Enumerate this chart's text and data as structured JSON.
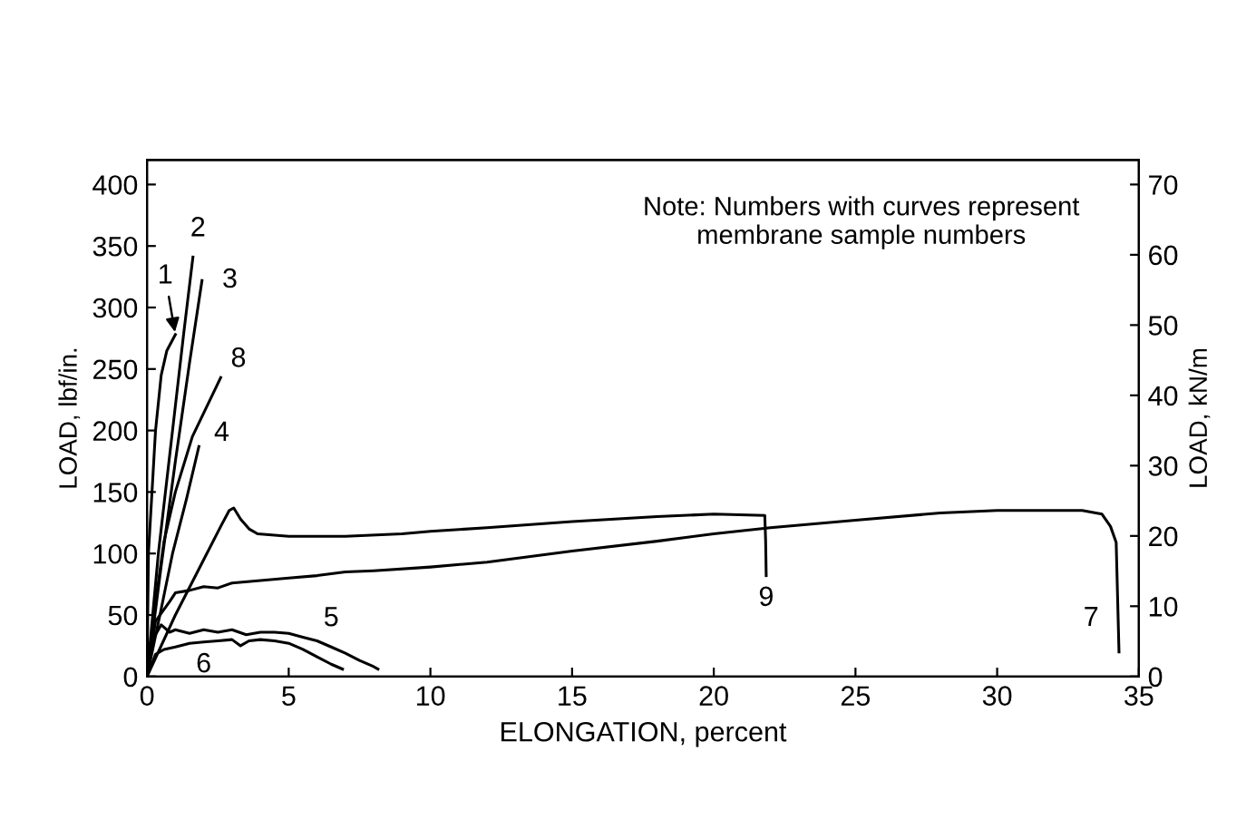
{
  "chart_data": {
    "type": "line",
    "xlabel": "ELONGATION, percent",
    "ylabel": "LOAD, lbf/in.",
    "y2label": "LOAD, kN/m",
    "xlim": [
      0,
      35
    ],
    "xticks": [
      0,
      5,
      10,
      15,
      20,
      25,
      30,
      35
    ],
    "ylim": [
      0,
      420
    ],
    "yticks": [
      0,
      50,
      100,
      150,
      200,
      250,
      300,
      350,
      400
    ],
    "y2lim": [
      0,
      73.5
    ],
    "y2ticks": [
      0,
      10,
      20,
      30,
      40,
      50,
      60,
      70
    ],
    "grid": false,
    "legend": false,
    "marker": "none",
    "line_style": "solid",
    "series": [
      {
        "name": "1",
        "color": "#000000",
        "x": [
          0,
          0.05,
          0.3,
          0.5,
          0.7,
          1.0
        ],
        "values": [
          0,
          100,
          200,
          245,
          265,
          278
        ]
      },
      {
        "name": "2",
        "color": "#000000",
        "x": [
          0,
          0.4,
          0.9,
          1.3,
          1.62
        ],
        "values": [
          0,
          100,
          200,
          280,
          341
        ]
      },
      {
        "name": "3",
        "color": "#000000",
        "x": [
          0,
          0.5,
          1.0,
          1.5,
          1.94
        ],
        "values": [
          0,
          90,
          175,
          255,
          322
        ]
      },
      {
        "name": "4",
        "color": "#000000",
        "x": [
          0,
          0.5,
          0.9,
          1.4,
          1.83
        ],
        "values": [
          0,
          55,
          100,
          145,
          187
        ]
      },
      {
        "name": "5",
        "color": "#000000",
        "x": [
          0,
          0.2,
          0.5,
          0.8,
          1,
          1.5,
          2,
          2.5,
          3,
          3.5,
          4,
          4.5,
          5,
          5.5,
          6,
          6.5,
          7,
          7.5,
          8,
          8.15
        ],
        "values": [
          0,
          30,
          42,
          36,
          38,
          35,
          38,
          36,
          38,
          34,
          36,
          36,
          35,
          32,
          29,
          24,
          19,
          13,
          8,
          6
        ]
      },
      {
        "name": "6",
        "color": "#000000",
        "x": [
          0,
          0.3,
          0.6,
          1,
          1.5,
          2,
          2.5,
          3,
          3.3,
          3.6,
          4,
          4.5,
          5,
          5.5,
          6,
          6.5,
          6.9
        ],
        "values": [
          0,
          18,
          22,
          24,
          27,
          28,
          29,
          30,
          25,
          29,
          30,
          29,
          27,
          22,
          16,
          10,
          6
        ]
      },
      {
        "name": "7",
        "color": "#000000",
        "x": [
          0,
          0.3,
          0.8,
          1,
          1.5,
          2,
          2.5,
          3,
          4,
          5,
          6,
          7,
          8,
          10,
          12,
          15,
          18,
          20,
          22,
          25,
          28,
          30,
          33,
          33.7,
          34.0,
          34.2,
          34.3
        ],
        "values": [
          0,
          45,
          61,
          68,
          70,
          73,
          72,
          76,
          78,
          80,
          82,
          85,
          86,
          89,
          93,
          102,
          110,
          116,
          121,
          127,
          133,
          135,
          135,
          132,
          122,
          109,
          20
        ]
      },
      {
        "name": "8",
        "color": "#000000",
        "x": [
          0,
          0.3,
          0.6,
          1.0,
          1.6,
          2.6
        ],
        "values": [
          0,
          60,
          110,
          150,
          195,
          243
        ]
      },
      {
        "name": "9",
        "color": "#000000",
        "x": [
          0,
          1,
          2,
          2.6,
          2.9,
          3.06,
          3.3,
          3.6,
          3.9,
          5,
          7,
          9,
          10,
          12,
          15,
          18,
          20,
          21.8,
          21.83,
          21.85
        ],
        "values": [
          0,
          50,
          95,
          122,
          135,
          137,
          128,
          120,
          116,
          114,
          114,
          116,
          118,
          121,
          126,
          130,
          132,
          131,
          110,
          82
        ]
      }
    ],
    "annotations": [
      "Note: Numbers with curves represent\nmembrane sample numbers"
    ]
  }
}
